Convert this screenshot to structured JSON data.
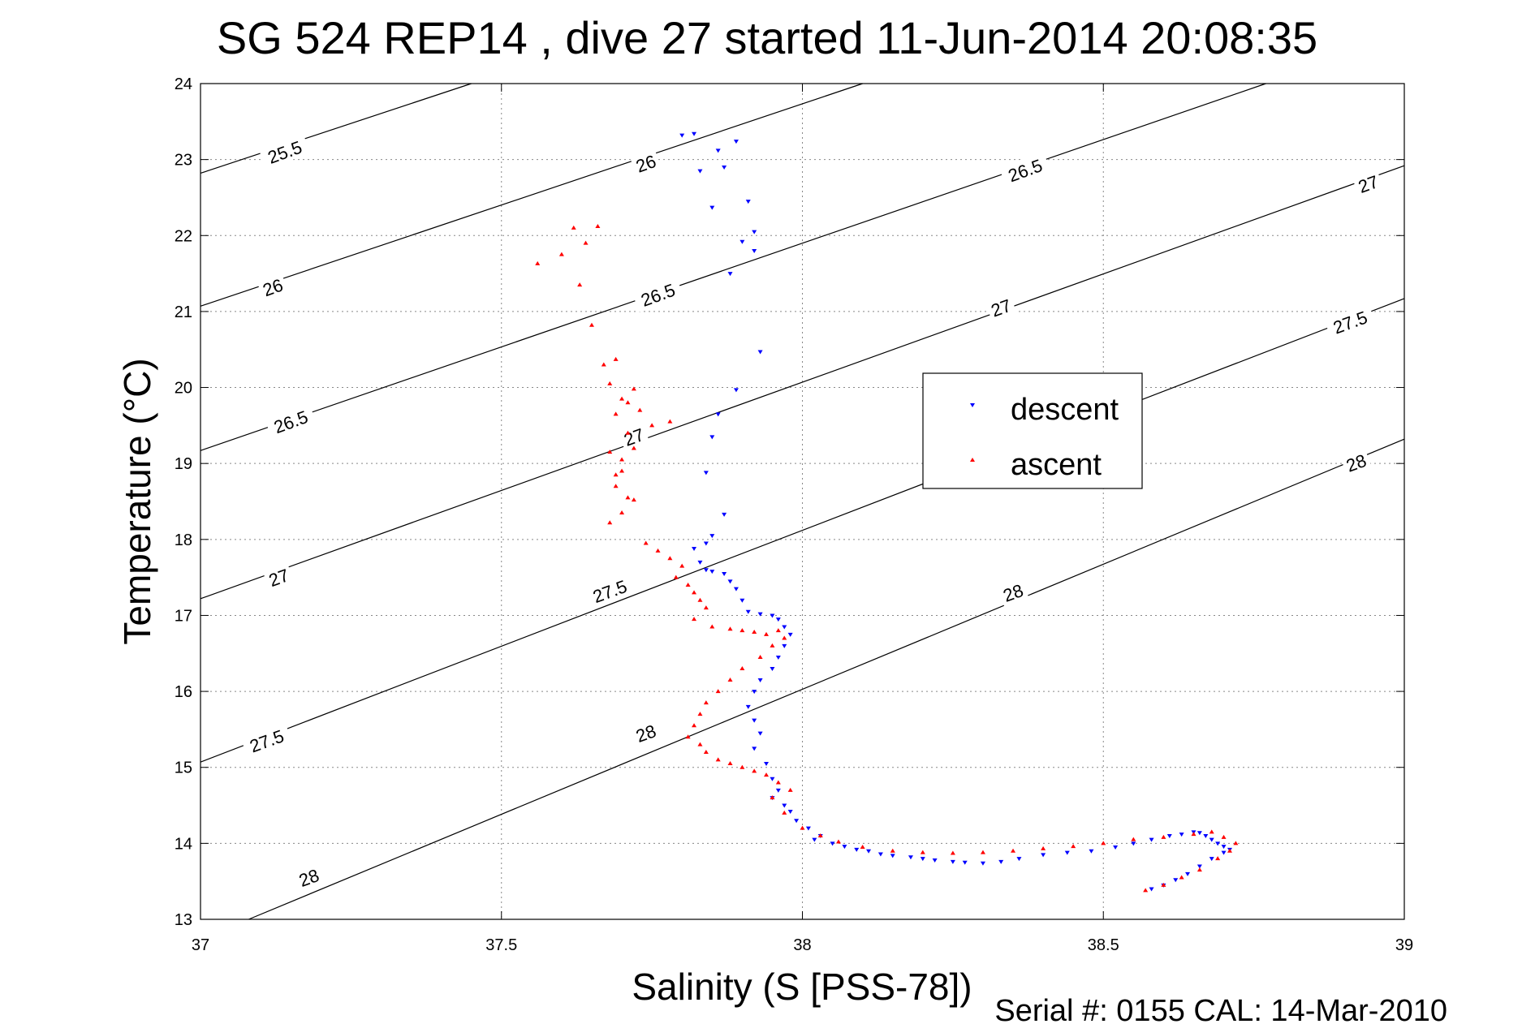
{
  "chart_data": {
    "type": "scatter",
    "title": "SG 524   REP14  , dive 27 started 11-Jun-2014 20:08:35",
    "xlabel": "Salinity (S [PSS-78])",
    "ylabel": "Temperature (°C)",
    "xlim": [
      37,
      39
    ],
    "ylim": [
      13,
      24
    ],
    "x_ticks": [
      "37",
      "37.5",
      "38",
      "38.5",
      "39"
    ],
    "y_ticks": [
      "13",
      "14",
      "15",
      "16",
      "17",
      "18",
      "19",
      "20",
      "21",
      "22",
      "23",
      "24"
    ],
    "grid": true,
    "footer": "Serial #: 0155  CAL: 14-Mar-2010",
    "legend": {
      "placement": "center-right",
      "entries": [
        "descent",
        "ascent"
      ]
    },
    "density_contours": [
      {
        "label": "25.5",
        "x": [
          37.0,
          37.45
        ],
        "y": [
          22.82,
          24.0
        ]
      },
      {
        "label": "26",
        "x": [
          37.0,
          38.1
        ],
        "y": [
          21.07,
          24.0
        ]
      },
      {
        "label": "26.5",
        "x": [
          37.0,
          38.77
        ],
        "y": [
          19.17,
          24.0
        ]
      },
      {
        "label": "27",
        "x": [
          37.0,
          39.0
        ],
        "y": [
          17.22,
          22.92
        ]
      },
      {
        "label": "27.5",
        "x": [
          37.0,
          39.0
        ],
        "y": [
          15.07,
          21.17
        ]
      },
      {
        "label": "28",
        "x": [
          37.08,
          39.0
        ],
        "y": [
          13.0,
          19.32
        ]
      }
    ],
    "contour_labels": [
      {
        "text": "25.5",
        "x": 37.14,
        "y": 23.1,
        "angle": -20
      },
      {
        "text": "26",
        "x": 37.74,
        "y": 22.95,
        "angle": -20
      },
      {
        "text": "26",
        "x": 37.12,
        "y": 21.32,
        "angle": -20
      },
      {
        "text": "26.5",
        "x": 38.37,
        "y": 22.86,
        "angle": -20
      },
      {
        "text": "26.5",
        "x": 37.76,
        "y": 21.22,
        "angle": -20
      },
      {
        "text": "26.5",
        "x": 37.15,
        "y": 19.55,
        "angle": -20
      },
      {
        "text": "27",
        "x": 38.94,
        "y": 22.68,
        "angle": -20
      },
      {
        "text": "27",
        "x": 38.33,
        "y": 21.05,
        "angle": -20
      },
      {
        "text": "27",
        "x": 37.72,
        "y": 19.35,
        "angle": -20
      },
      {
        "text": "27",
        "x": 37.13,
        "y": 17.5,
        "angle": -20
      },
      {
        "text": "27.5",
        "x": 38.91,
        "y": 20.86,
        "angle": -20
      },
      {
        "text": "27.5",
        "x": 37.68,
        "y": 17.32,
        "angle": -20
      },
      {
        "text": "27.5",
        "x": 37.11,
        "y": 15.35,
        "angle": -20
      },
      {
        "text": "28",
        "x": 38.92,
        "y": 19.01,
        "angle": -20
      },
      {
        "text": "28",
        "x": 38.35,
        "y": 17.3,
        "angle": -20
      },
      {
        "text": "28",
        "x": 37.74,
        "y": 15.45,
        "angle": -20
      },
      {
        "text": "28",
        "x": 37.18,
        "y": 13.55,
        "angle": -20
      }
    ],
    "series": [
      {
        "name": "descent",
        "color": "#0000ff",
        "marker": "triangle-down",
        "x": [
          37.8,
          37.82,
          37.86,
          37.89,
          37.83,
          37.85,
          37.87,
          37.91,
          37.9,
          37.92,
          37.88,
          37.92,
          37.93,
          37.89,
          37.86,
          37.85,
          37.84,
          37.87,
          37.85,
          37.84,
          37.82,
          37.83,
          37.84,
          37.85,
          37.87,
          37.88,
          37.89,
          37.9,
          37.91,
          37.93,
          37.95,
          37.96,
          37.97,
          37.98,
          37.97,
          37.96,
          37.95,
          37.93,
          37.92,
          37.91,
          37.92,
          37.93,
          37.92,
          37.94,
          37.95,
          37.96,
          37.95,
          37.97,
          37.98,
          37.99,
          38.01,
          38.03,
          38.02,
          38.05,
          38.07,
          38.09,
          38.11,
          38.13,
          38.15,
          38.18,
          38.2,
          38.22,
          38.25,
          38.27,
          38.3,
          38.33,
          38.36,
          38.4,
          38.44,
          38.48,
          38.52,
          38.55,
          38.58,
          38.61,
          38.63,
          38.65,
          38.66,
          38.67,
          38.68,
          38.69,
          38.7,
          38.71,
          38.7,
          38.68,
          38.66,
          38.64,
          38.62,
          38.6,
          38.58
        ],
        "y": [
          23.32,
          23.34,
          23.12,
          23.24,
          22.85,
          22.37,
          22.9,
          22.45,
          21.92,
          22.05,
          21.5,
          21.8,
          20.47,
          19.97,
          19.65,
          19.35,
          18.88,
          18.33,
          18.05,
          17.95,
          17.88,
          17.7,
          17.6,
          17.58,
          17.55,
          17.45,
          17.35,
          17.2,
          17.05,
          17.02,
          17.0,
          16.95,
          16.85,
          16.75,
          16.6,
          16.45,
          16.3,
          16.15,
          16.0,
          15.8,
          15.62,
          15.45,
          15.25,
          15.05,
          14.85,
          14.7,
          14.6,
          14.5,
          14.42,
          14.3,
          14.2,
          14.1,
          14.05,
          14.0,
          13.96,
          13.92,
          13.9,
          13.86,
          13.84,
          13.82,
          13.8,
          13.78,
          13.76,
          13.75,
          13.74,
          13.76,
          13.8,
          13.85,
          13.88,
          13.9,
          13.95,
          14.0,
          14.05,
          14.1,
          14.12,
          14.15,
          14.14,
          14.1,
          14.05,
          14.0,
          13.96,
          13.92,
          13.88,
          13.8,
          13.7,
          13.6,
          13.52,
          13.45,
          13.4
        ]
      },
      {
        "name": "ascent",
        "color": "#ff0000",
        "marker": "triangle-up",
        "x": [
          37.56,
          37.6,
          37.62,
          37.64,
          37.66,
          37.63,
          37.65,
          37.69,
          37.72,
          37.71,
          37.73,
          37.75,
          37.78,
          37.67,
          37.68,
          37.7,
          37.69,
          37.71,
          37.72,
          37.7,
          37.69,
          37.71,
          37.7,
          37.68,
          37.72,
          37.69,
          37.7,
          37.68,
          37.74,
          37.76,
          37.78,
          37.8,
          37.79,
          37.81,
          37.82,
          37.83,
          37.84,
          37.82,
          37.85,
          37.88,
          37.9,
          37.92,
          37.94,
          37.96,
          37.97,
          37.95,
          37.93,
          37.9,
          37.88,
          37.86,
          37.84,
          37.83,
          37.82,
          37.81,
          37.83,
          37.84,
          37.86,
          37.88,
          37.9,
          37.92,
          37.94,
          37.96,
          37.98,
          37.95,
          37.97,
          38.0,
          38.03,
          38.06,
          38.1,
          38.15,
          38.2,
          38.25,
          38.3,
          38.35,
          38.4,
          38.45,
          38.5,
          38.55,
          38.6,
          38.65,
          38.68,
          38.7,
          38.72,
          38.71,
          38.69,
          38.66,
          38.63,
          38.6,
          38.57
        ],
        "y": [
          21.63,
          21.75,
          22.1,
          21.9,
          22.12,
          21.35,
          20.82,
          20.37,
          19.98,
          19.8,
          19.7,
          19.5,
          19.55,
          20.3,
          20.05,
          19.85,
          19.65,
          19.4,
          19.2,
          19.05,
          18.85,
          18.55,
          18.35,
          18.22,
          18.52,
          18.7,
          18.9,
          19.15,
          17.95,
          17.85,
          17.75,
          17.65,
          17.5,
          17.4,
          17.3,
          17.2,
          17.1,
          16.95,
          16.85,
          16.82,
          16.8,
          16.78,
          16.75,
          16.8,
          16.7,
          16.6,
          16.45,
          16.3,
          16.15,
          16.0,
          15.85,
          15.7,
          15.55,
          15.4,
          15.3,
          15.2,
          15.1,
          15.05,
          15.0,
          14.95,
          14.9,
          14.8,
          14.7,
          14.6,
          14.4,
          14.2,
          14.1,
          14.02,
          13.95,
          13.9,
          13.88,
          13.87,
          13.88,
          13.9,
          13.93,
          13.96,
          14.0,
          14.05,
          14.08,
          14.12,
          14.15,
          14.08,
          14.0,
          13.9,
          13.8,
          13.65,
          13.55,
          13.45,
          13.38
        ]
      }
    ]
  }
}
